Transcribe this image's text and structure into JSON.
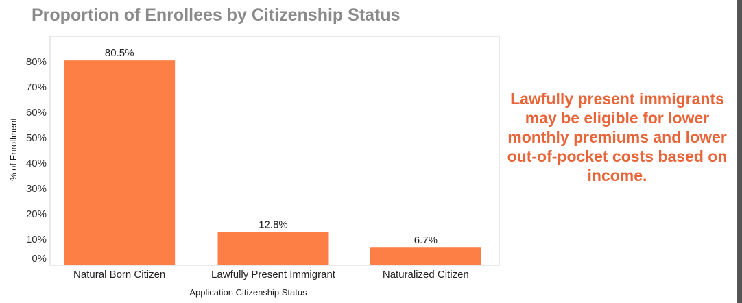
{
  "title": "Proportion of Enrollees by Citizenship Status",
  "note": "Lawfully present immigrants may be eligible for lower monthly premiums and lower out-of-pocket costs based on income.",
  "colors": {
    "bar": "#fd7f45",
    "note": "#e8653a",
    "title": "#8a8a8a"
  },
  "chart_data": {
    "type": "bar",
    "title": "",
    "xlabel": "Application Citizenship Status",
    "ylabel": "% of Enrollment",
    "categories": [
      "Natural Born Citizen",
      "Lawfully Present Immigrant",
      "Naturalized Citizen"
    ],
    "values": [
      80.5,
      12.8,
      6.7
    ],
    "data_labels": [
      "80.5%",
      "12.8%",
      "6.7%"
    ],
    "yticks": [
      "0%",
      "10%",
      "20%",
      "30%",
      "40%",
      "50%",
      "60%",
      "70%",
      "80%"
    ],
    "ylim": [
      0,
      85
    ],
    "grid": false,
    "legend": "none"
  }
}
